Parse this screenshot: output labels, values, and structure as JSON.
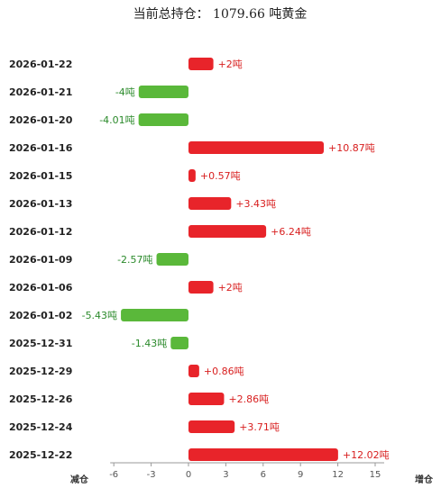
{
  "chart_data": {
    "type": "bar",
    "orientation": "horizontal",
    "title": "当前总持仓：  1079.66 吨黄金",
    "categories": [
      "2026-01-22",
      "2026-01-21",
      "2026-01-20",
      "2026-01-16",
      "2026-01-15",
      "2026-01-13",
      "2026-01-12",
      "2026-01-09",
      "2026-01-06",
      "2026-01-02",
      "2025-12-31",
      "2025-12-29",
      "2025-12-26",
      "2025-12-24",
      "2025-12-22"
    ],
    "values": [
      2,
      -4,
      -4.01,
      10.87,
      0.57,
      3.43,
      6.24,
      -2.57,
      2,
      -5.43,
      -1.43,
      0.86,
      2.86,
      3.71,
      12.02
    ],
    "value_labels": [
      "+2吨",
      "-4吨",
      "-4.01吨",
      "+10.87吨",
      "+0.57吨",
      "+3.43吨",
      "+6.24吨",
      "-2.57吨",
      "+2吨",
      "-5.43吨",
      "-1.43吨",
      "+0.86吨",
      "+2.86吨",
      "+3.71吨",
      "+12.02吨"
    ],
    "x_ticks": [
      -6,
      -3,
      0,
      3,
      6,
      9,
      12,
      15
    ],
    "xlim": [
      -6,
      15
    ],
    "x_left_label": "减仓",
    "x_right_label": "增仓",
    "grid": false,
    "colors": {
      "positive": "#e8242a",
      "negative": "#5ab83a"
    }
  }
}
